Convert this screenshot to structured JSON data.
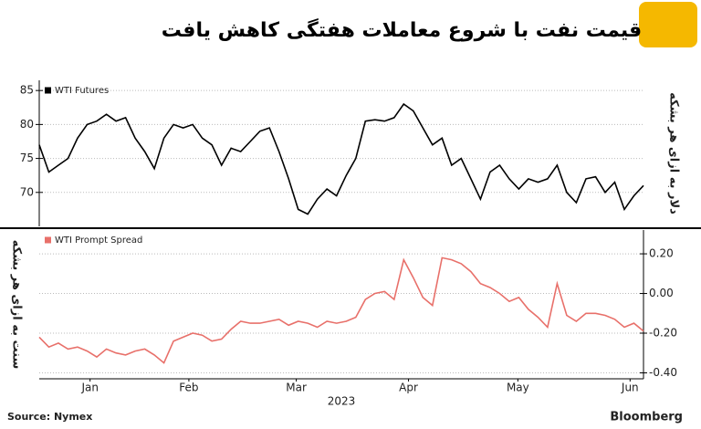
{
  "title": "قیمت نفت با شروع معاملات هفتگی کاهش یافت",
  "source": "Source: Nymex",
  "brand": "Bloomberg",
  "chart_data": [
    {
      "type": "line",
      "ylabel": "دلار به ازای هر بشکه",
      "xlim": [
        0,
        63
      ],
      "ylim": [
        65,
        86.5
      ],
      "yticks": [
        70,
        75,
        80,
        85
      ],
      "grid": true,
      "legend": "top-left",
      "series": [
        {
          "name": "WTI Futures",
          "color": "#000000",
          "values": [
            77,
            73,
            74,
            75,
            78,
            80,
            80.5,
            81.5,
            80.5,
            81,
            78,
            76,
            73.5,
            78,
            80,
            79.5,
            80,
            78,
            77,
            74,
            76.5,
            76,
            77.5,
            79,
            79.5,
            76,
            72,
            67.5,
            66.8,
            69,
            70.5,
            69.5,
            72.5,
            75,
            80.5,
            80.7,
            80.5,
            81,
            83,
            82,
            79.5,
            77,
            78,
            74,
            75,
            72,
            69,
            73,
            74,
            72,
            70.5,
            72,
            71.5,
            72,
            74,
            70,
            68.5,
            72,
            72.3,
            70,
            71.5,
            67.5,
            69.5,
            71
          ]
        }
      ]
    },
    {
      "type": "line",
      "ylabel": "سنت به ازای هر بشکه",
      "xlabel": "2023",
      "xlim": [
        0,
        63
      ],
      "ylim": [
        -0.43,
        0.32
      ],
      "yticks": [
        {
          "value": 0.2,
          "label": "0.20"
        },
        {
          "value": 0,
          "label": "0.00"
        },
        {
          "value": -0.2,
          "label": "-0.20"
        },
        {
          "value": -0.4,
          "label": "-0.40"
        }
      ],
      "xticks": [
        {
          "value": 5.3,
          "label": "Jan"
        },
        {
          "value": 15.6,
          "label": "Feb"
        },
        {
          "value": 26.8,
          "label": "Mar"
        },
        {
          "value": 38.5,
          "label": "Apr"
        },
        {
          "value": 49.9,
          "label": "May"
        },
        {
          "value": 61.6,
          "label": "Jun"
        }
      ],
      "grid": true,
      "legend": "top-left",
      "series": [
        {
          "name": "WTI Prompt Spread",
          "color": "#e8706a",
          "values": [
            -0.22,
            -0.27,
            -0.25,
            -0.28,
            -0.27,
            -0.29,
            -0.32,
            -0.28,
            -0.3,
            -0.31,
            -0.29,
            -0.28,
            -0.31,
            -0.35,
            -0.24,
            -0.22,
            -0.2,
            -0.21,
            -0.24,
            -0.23,
            -0.18,
            -0.14,
            -0.15,
            -0.15,
            -0.14,
            -0.13,
            -0.16,
            -0.14,
            -0.15,
            -0.17,
            -0.14,
            -0.15,
            -0.14,
            -0.12,
            -0.03,
            0,
            0.01,
            -0.03,
            0.17,
            0.08,
            -0.02,
            -0.06,
            0.18,
            0.17,
            0.15,
            0.11,
            0.05,
            0.03,
            0,
            -0.04,
            -0.02,
            -0.08,
            -0.12,
            -0.17,
            0.05,
            -0.11,
            -0.14,
            -0.1,
            -0.1,
            -0.11,
            -0.13,
            -0.17,
            -0.15,
            -0.19
          ]
        }
      ]
    }
  ]
}
